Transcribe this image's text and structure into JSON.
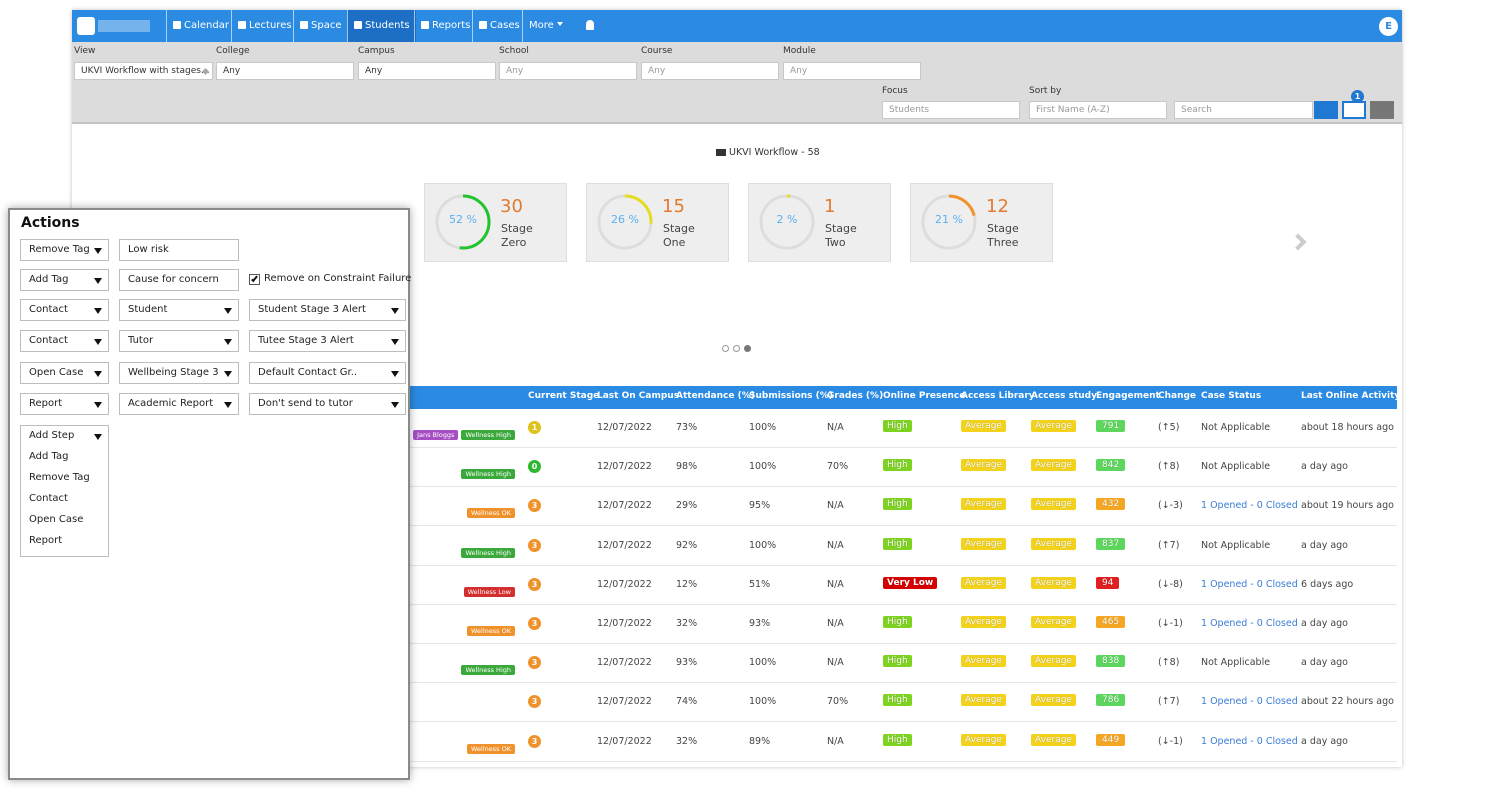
{
  "nav": {
    "items": [
      "Calendar",
      "Lectures",
      "Space",
      "Students",
      "Reports",
      "Cases",
      "More"
    ],
    "avatar": "E"
  },
  "filters": {
    "fields": [
      {
        "label": "View",
        "value": "UKVI Workflow with stages..."
      },
      {
        "label": "College",
        "value": "Any"
      },
      {
        "label": "Campus",
        "value": "Any"
      },
      {
        "label": "School",
        "placeholder": "Any"
      },
      {
        "label": "Course",
        "placeholder": "Any"
      },
      {
        "label": "Module",
        "placeholder": "Any"
      }
    ],
    "focus": {
      "label": "Focus",
      "value": "Students"
    },
    "sort": {
      "label": "Sort by",
      "value": "First Name (A-Z)"
    },
    "search": {
      "placeholder": "Search"
    },
    "filter_badge": "1"
  },
  "workflow": {
    "title": "UKVI Workflow - 58",
    "cards": [
      {
        "percent": 52,
        "percent_label": "52 %",
        "count": 30,
        "label": "Stage Zero",
        "color": "#22c42e"
      },
      {
        "percent": 26,
        "percent_label": "26 %",
        "count": 15,
        "label": "Stage One",
        "color": "#e3dc1f"
      },
      {
        "percent": 2,
        "percent_label": "2 %",
        "count": 1,
        "label": "Stage Two",
        "color": "#e3dc1f"
      },
      {
        "percent": 21,
        "percent_label": "21 %",
        "count": 12,
        "label": "Stage Three",
        "color": "#f2922a"
      }
    ]
  },
  "table": {
    "columns": [
      "Current Stage",
      "Last On Campus",
      "Attendance (%)",
      "Submissions (%)",
      "Grades (%)",
      "Online Presence",
      "Access Library",
      "Access study",
      "Engagement",
      "Change",
      "Case Status",
      "Last Online Activity"
    ],
    "rows": [
      {
        "tags": [
          {
            "text": "Jans Bloggs",
            "color": "#a64fc4"
          },
          {
            "text": "Wellness High",
            "color": "#3aa83a"
          }
        ],
        "stage": "1",
        "stage_color": "#e0c21c",
        "last_on_campus": "12/07/2022",
        "attendance": "73%",
        "submissions": "100%",
        "grades": "N/A",
        "online_presence": "High",
        "presence_color": "#7ed321",
        "access_library": "Average",
        "access_study": "Average",
        "engagement": "791",
        "engagement_color": "#5cd65c",
        "change": "(↑5)",
        "case_status": "Not Applicable",
        "last_online_activity": "about 18 hours ago"
      },
      {
        "tags": [
          {
            "text": "Wellness High",
            "color": "#3aa83a"
          }
        ],
        "stage": "0",
        "stage_color": "#2eb82e",
        "last_on_campus": "12/07/2022",
        "attendance": "98%",
        "submissions": "100%",
        "grades": "70%",
        "online_presence": "High",
        "presence_color": "#7ed321",
        "access_library": "Average",
        "access_study": "Average",
        "engagement": "842",
        "engagement_color": "#5cd65c",
        "change": "(↑8)",
        "case_status": "Not Applicable",
        "last_online_activity": "a day ago"
      },
      {
        "tags": [
          {
            "text": "Wellness OK",
            "color": "#f0922b"
          }
        ],
        "stage": "3",
        "stage_color": "#f0922b",
        "last_on_campus": "12/07/2022",
        "attendance": "29%",
        "submissions": "95%",
        "grades": "N/A",
        "online_presence": "High",
        "presence_color": "#7ed321",
        "access_library": "Average",
        "access_study": "Average",
        "engagement": "432",
        "engagement_color": "#f5a623",
        "change": "(↓-3)",
        "case_status": "1 Opened - 0 Closed",
        "last_online_activity": "about 19 hours ago"
      },
      {
        "tags": [
          {
            "text": "Wellness High",
            "color": "#3aa83a"
          }
        ],
        "stage": "3",
        "stage_color": "#f0922b",
        "last_on_campus": "12/07/2022",
        "attendance": "92%",
        "submissions": "100%",
        "grades": "N/A",
        "online_presence": "High",
        "presence_color": "#7ed321",
        "access_library": "Average",
        "access_study": "Average",
        "engagement": "837",
        "engagement_color": "#5cd65c",
        "change": "(↑7)",
        "case_status": "Not Applicable",
        "last_online_activity": "a day ago"
      },
      {
        "tags": [
          {
            "text": "Wellness Low",
            "color": "#d32f2f"
          }
        ],
        "stage": "3",
        "stage_color": "#f0922b",
        "last_on_campus": "12/07/2022",
        "attendance": "12%",
        "submissions": "51%",
        "grades": "N/A",
        "online_presence": "Very Low",
        "presence_color": "#d50000",
        "access_library": "Average",
        "access_study": "Average",
        "engagement": "94",
        "engagement_color": "#e02020",
        "change": "(↓-8)",
        "case_status": "1 Opened - 0 Closed",
        "last_online_activity": "6 days ago"
      },
      {
        "tags": [
          {
            "text": "Wellness OK",
            "color": "#f0922b"
          }
        ],
        "stage": "3",
        "stage_color": "#f0922b",
        "last_on_campus": "12/07/2022",
        "attendance": "32%",
        "submissions": "93%",
        "grades": "N/A",
        "online_presence": "High",
        "presence_color": "#7ed321",
        "access_library": "Average",
        "access_study": "Average",
        "engagement": "465",
        "engagement_color": "#f5a623",
        "change": "(↓-1)",
        "case_status": "1 Opened - 0 Closed",
        "last_online_activity": "a day ago"
      },
      {
        "tags": [
          {
            "text": "Wellness High",
            "color": "#3aa83a"
          }
        ],
        "stage": "3",
        "stage_color": "#f0922b",
        "last_on_campus": "12/07/2022",
        "attendance": "93%",
        "submissions": "100%",
        "grades": "N/A",
        "online_presence": "High",
        "presence_color": "#7ed321",
        "access_library": "Average",
        "access_study": "Average",
        "engagement": "838",
        "engagement_color": "#5cd65c",
        "change": "(↑8)",
        "case_status": "Not Applicable",
        "last_online_activity": "a day ago"
      },
      {
        "tags": [],
        "stage": "3",
        "stage_color": "#f0922b",
        "last_on_campus": "12/07/2022",
        "attendance": "74%",
        "submissions": "100%",
        "grades": "70%",
        "online_presence": "High",
        "presence_color": "#7ed321",
        "access_library": "Average",
        "access_study": "Average",
        "engagement": "786",
        "engagement_color": "#5cd65c",
        "change": "(↑7)",
        "case_status": "1 Opened - 0 Closed",
        "last_online_activity": "about 22 hours ago"
      },
      {
        "tags": [
          {
            "text": "Wellness OK",
            "color": "#f0922b"
          }
        ],
        "stage": "3",
        "stage_color": "#f0922b",
        "last_on_campus": "12/07/2022",
        "attendance": "32%",
        "submissions": "89%",
        "grades": "N/A",
        "online_presence": "High",
        "presence_color": "#7ed321",
        "access_library": "Average",
        "access_study": "Average",
        "engagement": "449",
        "engagement_color": "#f5a623",
        "change": "(↓-1)",
        "case_status": "1 Opened - 0 Closed",
        "last_online_activity": "a day ago"
      }
    ]
  },
  "actions": {
    "title": "Actions",
    "rows": [
      [
        {
          "select": "Remove Tag"
        },
        {
          "input": "Low risk"
        }
      ],
      [
        {
          "select": "Add Tag"
        },
        {
          "input": "Cause for concern"
        },
        {
          "checkbox": "Remove on Constraint Failure",
          "checked": true
        }
      ],
      [
        {
          "select": "Contact"
        },
        {
          "select": "Student"
        },
        {
          "select": "Student Stage 3 Alert"
        }
      ],
      [
        {
          "select": "Contact"
        },
        {
          "select": "Tutor"
        },
        {
          "select": "Tutee Stage 3 Alert"
        }
      ],
      [
        {
          "select": "Open Case"
        },
        {
          "select": "Wellbeing Stage 3"
        },
        {
          "select": "Default Contact Gr.."
        }
      ],
      [
        {
          "select": "Report"
        },
        {
          "select": "Academic Report"
        },
        {
          "select": "Don't send to tutor"
        }
      ]
    ],
    "step_select": "Add Step",
    "step_options": [
      "Add Tag",
      "Remove Tag",
      "Contact",
      "Open Case",
      "Report"
    ]
  }
}
